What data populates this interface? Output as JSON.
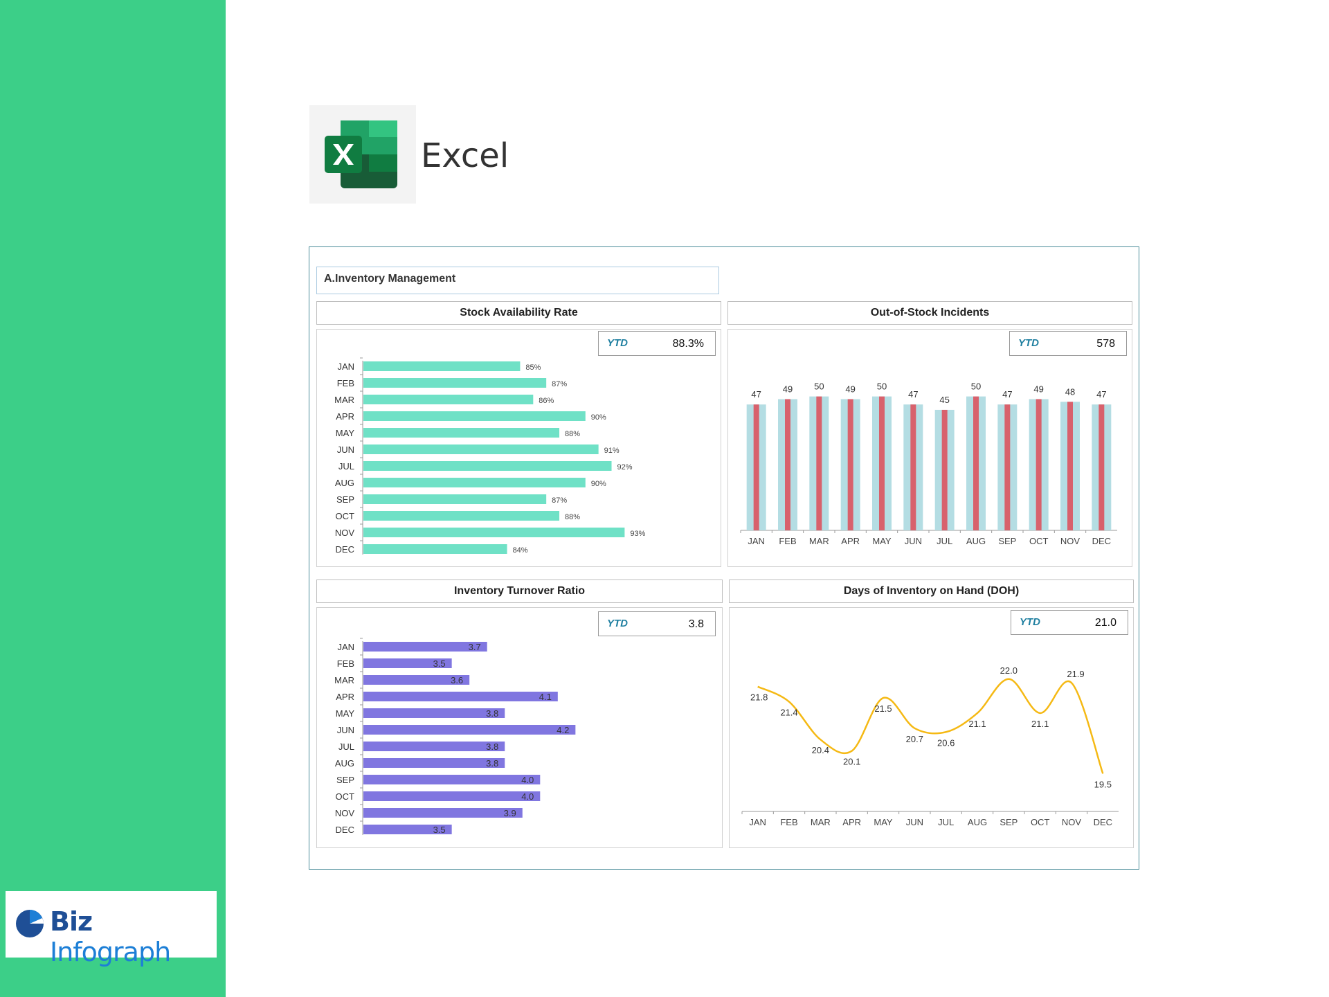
{
  "app": {
    "name": "Excel",
    "icon": "excel-icon"
  },
  "brand": {
    "part1": "Biz",
    "part2": "Infograph",
    "icon": "pie-chart-icon"
  },
  "colors": {
    "sidebar": "#3ccf88",
    "stockBar": "#6fe1c6",
    "turnoverBar": "#8076e0",
    "outBack": "#b4dde3",
    "outFront": "#d8616c",
    "line": "#f5b914"
  },
  "dashboard": {
    "section_title": "A.Inventory Management",
    "panels": {
      "stock": {
        "title": "Stock Availability Rate",
        "ytd_label": "YTD",
        "ytd_value": "88.3%"
      },
      "outofstock": {
        "title": "Out-of-Stock Incidents",
        "ytd_label": "YTD",
        "ytd_value": "578"
      },
      "turnover": {
        "title": "Inventory Turnover Ratio",
        "ytd_label": "YTD",
        "ytd_value": "3.8"
      },
      "doh": {
        "title": "Days of Inventory on Hand (DOH)",
        "ytd_label": "YTD",
        "ytd_value": "21.0"
      }
    }
  },
  "chart_data": [
    {
      "id": "stock",
      "type": "bar",
      "orientation": "horizontal",
      "title": "Stock Availability Rate",
      "categories": [
        "JAN",
        "FEB",
        "MAR",
        "APR",
        "MAY",
        "JUN",
        "JUL",
        "AUG",
        "SEP",
        "OCT",
        "NOV",
        "DEC"
      ],
      "values": [
        85,
        87,
        86,
        90,
        88,
        91,
        92,
        90,
        87,
        88,
        93,
        84
      ],
      "value_format": "{v}%",
      "xlim": [
        73,
        96
      ]
    },
    {
      "id": "outofstock",
      "type": "bar",
      "title": "Out-of-Stock Incidents",
      "categories": [
        "JAN",
        "FEB",
        "MAR",
        "APR",
        "MAY",
        "JUN",
        "JUL",
        "AUG",
        "SEP",
        "OCT",
        "NOV",
        "DEC"
      ],
      "values": [
        47,
        49,
        50,
        49,
        50,
        47,
        45,
        50,
        47,
        49,
        48,
        47
      ],
      "ylim": [
        0,
        53
      ]
    },
    {
      "id": "turnover",
      "type": "bar",
      "orientation": "horizontal",
      "title": "Inventory Turnover Ratio",
      "categories": [
        "JAN",
        "FEB",
        "MAR",
        "APR",
        "MAY",
        "JUN",
        "JUL",
        "AUG",
        "SEP",
        "OCT",
        "NOV",
        "DEC"
      ],
      "values": [
        3.7,
        3.5,
        3.6,
        4.1,
        3.8,
        4.2,
        3.8,
        3.8,
        4.0,
        4.0,
        3.9,
        3.5
      ],
      "value_format": "{v1}",
      "xlim": [
        3.0,
        4.7
      ]
    },
    {
      "id": "doh",
      "type": "line",
      "title": "Days of Inventory on Hand (DOH)",
      "categories": [
        "JAN",
        "FEB",
        "MAR",
        "APR",
        "MAY",
        "JUN",
        "JUL",
        "AUG",
        "SEP",
        "OCT",
        "NOV",
        "DEC"
      ],
      "values": [
        21.8,
        21.4,
        20.4,
        20.1,
        21.5,
        20.7,
        20.6,
        21.1,
        22.0,
        21.1,
        21.9,
        19.5
      ],
      "ylim": [
        18.5,
        22.6
      ]
    }
  ]
}
